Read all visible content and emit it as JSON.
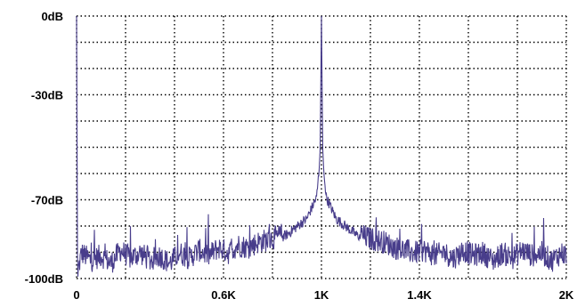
{
  "chart_data": {
    "type": "line",
    "title": "",
    "xlabel": "",
    "ylabel": "",
    "xlim": [
      0,
      2000
    ],
    "ylim": [
      -100,
      0
    ],
    "grid": true,
    "x_ticks": [
      {
        "value": 0,
        "label": "0"
      },
      {
        "value": 600,
        "label": "0.6K"
      },
      {
        "value": 1000,
        "label": "1K"
      },
      {
        "value": 1400,
        "label": "1.4K"
      },
      {
        "value": 2000,
        "label": "2K"
      }
    ],
    "y_ticks": [
      {
        "value": 0,
        "label": "0dB"
      },
      {
        "value": -30,
        "label": "-30dB"
      },
      {
        "value": -70,
        "label": "-70dB"
      },
      {
        "value": -100,
        "label": "-100dB"
      }
    ],
    "series": [
      {
        "color": "#483d8b",
        "points": [
          [
            0,
            0
          ],
          [
            4,
            -100
          ],
          [
            20,
            -92
          ],
          [
            60,
            -95
          ],
          [
            100,
            -93
          ],
          [
            140,
            -96
          ],
          [
            180,
            -91
          ],
          [
            220,
            -94
          ],
          [
            260,
            -92
          ],
          [
            300,
            -95
          ],
          [
            340,
            -93
          ],
          [
            380,
            -96
          ],
          [
            420,
            -92
          ],
          [
            460,
            -94
          ],
          [
            500,
            -91
          ],
          [
            540,
            -93
          ],
          [
            580,
            -90
          ],
          [
            620,
            -92
          ],
          [
            660,
            -89
          ],
          [
            700,
            -90
          ],
          [
            740,
            -88
          ],
          [
            780,
            -87
          ],
          [
            820,
            -86
          ],
          [
            860,
            -84
          ],
          [
            900,
            -81
          ],
          [
            940,
            -78
          ],
          [
            960,
            -74
          ],
          [
            980,
            -70
          ],
          [
            990,
            -60
          ],
          [
            995,
            -50
          ],
          [
            1000,
            0
          ],
          [
            1005,
            -50
          ],
          [
            1010,
            -60
          ],
          [
            1020,
            -70
          ],
          [
            1040,
            -74
          ],
          [
            1060,
            -78
          ],
          [
            1100,
            -81
          ],
          [
            1140,
            -84
          ],
          [
            1180,
            -86
          ],
          [
            1220,
            -87
          ],
          [
            1260,
            -88
          ],
          [
            1300,
            -90
          ],
          [
            1340,
            -91
          ],
          [
            1380,
            -92
          ],
          [
            1420,
            -91
          ],
          [
            1460,
            -93
          ],
          [
            1500,
            -92
          ],
          [
            1540,
            -94
          ],
          [
            1580,
            -91
          ],
          [
            1620,
            -93
          ],
          [
            1660,
            -92
          ],
          [
            1700,
            -95
          ],
          [
            1740,
            -92
          ],
          [
            1780,
            -94
          ],
          [
            1820,
            -91
          ],
          [
            1860,
            -93
          ],
          [
            1900,
            -92
          ],
          [
            1940,
            -95
          ],
          [
            1980,
            -92
          ],
          [
            2000,
            -93
          ]
        ]
      }
    ]
  }
}
